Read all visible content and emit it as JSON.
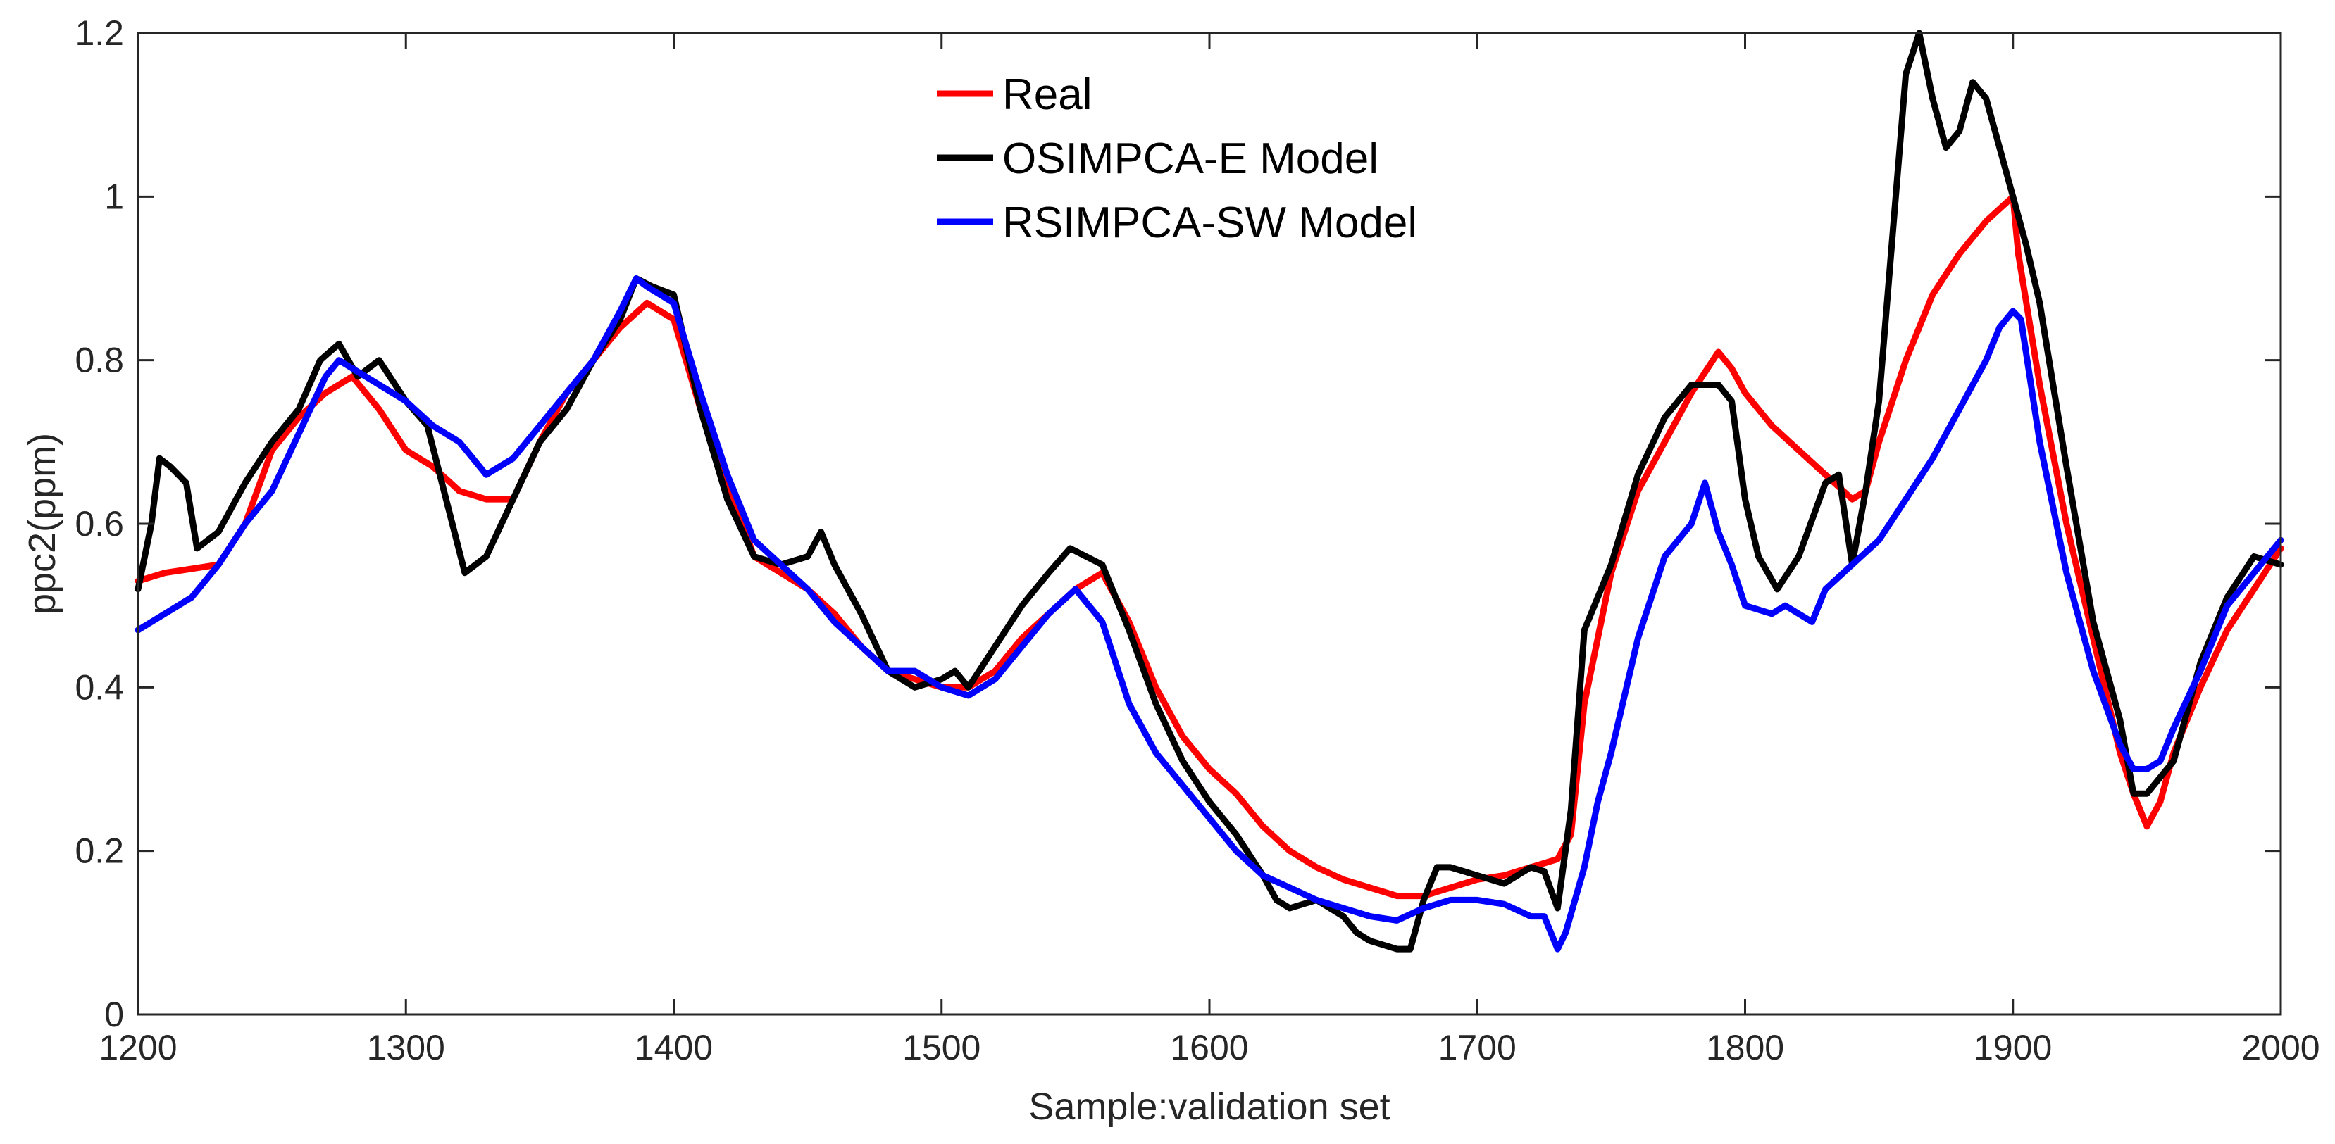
{
  "chart_data": {
    "type": "line",
    "title": "",
    "xlabel": "Sample:validation set",
    "ylabel": "ppc2(ppm)",
    "xlim": [
      1200,
      2000
    ],
    "ylim": [
      0,
      1.2
    ],
    "xticks": [
      1200,
      1300,
      1400,
      1500,
      1600,
      1700,
      1800,
      1900,
      2000
    ],
    "yticks": [
      0,
      0.2,
      0.4,
      0.6,
      0.8,
      1,
      1.2
    ],
    "xtick_labels": [
      "1200",
      "1300",
      "1400",
      "1500",
      "1600",
      "1700",
      "1800",
      "1900",
      "2000"
    ],
    "ytick_labels": [
      "0",
      "0.2",
      "0.4",
      "0.6",
      "0.8",
      "1",
      "1.2"
    ],
    "grid": false,
    "legend_position": "top-center",
    "series": [
      {
        "name": "Real",
        "color": "#ff0000",
        "x": [
          1200,
          1210,
          1220,
          1230,
          1240,
          1250,
          1260,
          1270,
          1280,
          1290,
          1300,
          1310,
          1320,
          1330,
          1340,
          1350,
          1360,
          1370,
          1380,
          1390,
          1400,
          1410,
          1420,
          1430,
          1440,
          1450,
          1460,
          1470,
          1480,
          1490,
          1500,
          1510,
          1520,
          1530,
          1540,
          1550,
          1560,
          1570,
          1580,
          1590,
          1600,
          1610,
          1620,
          1630,
          1640,
          1650,
          1660,
          1670,
          1680,
          1690,
          1700,
          1710,
          1720,
          1730,
          1735,
          1740,
          1750,
          1760,
          1770,
          1780,
          1790,
          1795,
          1800,
          1810,
          1820,
          1830,
          1840,
          1845,
          1850,
          1860,
          1870,
          1880,
          1890,
          1900,
          1902,
          1910,
          1920,
          1930,
          1940,
          1945,
          1950,
          1955,
          1960,
          1970,
          1980,
          1990,
          2000
        ],
        "y": [
          0.53,
          0.54,
          0.545,
          0.55,
          0.6,
          0.69,
          0.73,
          0.76,
          0.78,
          0.74,
          0.69,
          0.67,
          0.64,
          0.63,
          0.63,
          0.7,
          0.76,
          0.8,
          0.84,
          0.87,
          0.85,
          0.74,
          0.65,
          0.56,
          0.54,
          0.52,
          0.49,
          0.45,
          0.42,
          0.41,
          0.4,
          0.4,
          0.42,
          0.46,
          0.49,
          0.52,
          0.54,
          0.48,
          0.4,
          0.34,
          0.3,
          0.27,
          0.23,
          0.2,
          0.18,
          0.165,
          0.155,
          0.145,
          0.145,
          0.155,
          0.165,
          0.17,
          0.18,
          0.19,
          0.22,
          0.38,
          0.54,
          0.64,
          0.7,
          0.76,
          0.81,
          0.79,
          0.76,
          0.72,
          0.69,
          0.66,
          0.63,
          0.64,
          0.7,
          0.8,
          0.88,
          0.93,
          0.97,
          1.0,
          0.93,
          0.77,
          0.6,
          0.46,
          0.32,
          0.27,
          0.23,
          0.26,
          0.32,
          0.4,
          0.47,
          0.52,
          0.57
        ]
      },
      {
        "name": "OSIMPCA-E Model",
        "color": "#000000",
        "x": [
          1200,
          1205,
          1208,
          1212,
          1218,
          1222,
          1230,
          1240,
          1250,
          1260,
          1268,
          1275,
          1282,
          1290,
          1300,
          1308,
          1315,
          1322,
          1330,
          1340,
          1350,
          1360,
          1370,
          1380,
          1386,
          1392,
          1400,
          1410,
          1420,
          1430,
          1440,
          1450,
          1455,
          1460,
          1470,
          1480,
          1490,
          1500,
          1505,
          1510,
          1520,
          1530,
          1540,
          1548,
          1560,
          1570,
          1580,
          1590,
          1600,
          1610,
          1620,
          1625,
          1630,
          1640,
          1650,
          1655,
          1660,
          1670,
          1675,
          1680,
          1685,
          1690,
          1700,
          1710,
          1715,
          1720,
          1725,
          1730,
          1735,
          1740,
          1750,
          1760,
          1770,
          1780,
          1785,
          1790,
          1795,
          1800,
          1805,
          1812,
          1820,
          1830,
          1835,
          1840,
          1845,
          1850,
          1855,
          1860,
          1865,
          1870,
          1875,
          1880,
          1885,
          1890,
          1900,
          1905,
          1910,
          1920,
          1930,
          1940,
          1945,
          1950,
          1960,
          1970,
          1980,
          1990,
          2000
        ],
        "y": [
          0.52,
          0.6,
          0.68,
          0.67,
          0.65,
          0.57,
          0.59,
          0.65,
          0.7,
          0.74,
          0.8,
          0.82,
          0.78,
          0.8,
          0.75,
          0.72,
          0.63,
          0.54,
          0.56,
          0.63,
          0.7,
          0.74,
          0.8,
          0.85,
          0.9,
          0.89,
          0.88,
          0.74,
          0.63,
          0.56,
          0.55,
          0.56,
          0.59,
          0.55,
          0.49,
          0.42,
          0.4,
          0.41,
          0.42,
          0.4,
          0.45,
          0.5,
          0.54,
          0.57,
          0.55,
          0.47,
          0.38,
          0.31,
          0.26,
          0.22,
          0.17,
          0.14,
          0.13,
          0.14,
          0.12,
          0.1,
          0.09,
          0.08,
          0.08,
          0.14,
          0.18,
          0.18,
          0.17,
          0.16,
          0.17,
          0.18,
          0.175,
          0.13,
          0.25,
          0.47,
          0.55,
          0.66,
          0.73,
          0.77,
          0.77,
          0.77,
          0.75,
          0.63,
          0.56,
          0.52,
          0.56,
          0.65,
          0.66,
          0.55,
          0.64,
          0.75,
          0.95,
          1.15,
          1.2,
          1.12,
          1.06,
          1.08,
          1.14,
          1.12,
          1.0,
          0.94,
          0.87,
          0.67,
          0.48,
          0.36,
          0.27,
          0.27,
          0.31,
          0.43,
          0.51,
          0.56,
          0.55
        ]
      },
      {
        "name": "RSIMPCA-SW Model",
        "color": "#0000ff",
        "x": [
          1200,
          1210,
          1220,
          1230,
          1240,
          1250,
          1260,
          1270,
          1275,
          1280,
          1290,
          1300,
          1310,
          1320,
          1330,
          1340,
          1350,
          1360,
          1370,
          1380,
          1386,
          1390,
          1400,
          1410,
          1420,
          1430,
          1440,
          1450,
          1460,
          1470,
          1480,
          1490,
          1500,
          1510,
          1520,
          1530,
          1540,
          1550,
          1560,
          1570,
          1580,
          1590,
          1600,
          1610,
          1620,
          1630,
          1640,
          1650,
          1660,
          1670,
          1680,
          1690,
          1700,
          1710,
          1720,
          1725,
          1730,
          1733,
          1740,
          1745,
          1750,
          1760,
          1770,
          1780,
          1785,
          1790,
          1795,
          1800,
          1810,
          1815,
          1820,
          1825,
          1830,
          1840,
          1850,
          1860,
          1870,
          1880,
          1890,
          1895,
          1900,
          1903,
          1910,
          1920,
          1930,
          1940,
          1945,
          1950,
          1955,
          1960,
          1970,
          1980,
          1990,
          2000
        ],
        "y": [
          0.47,
          0.49,
          0.51,
          0.55,
          0.6,
          0.64,
          0.71,
          0.78,
          0.8,
          0.79,
          0.77,
          0.75,
          0.72,
          0.7,
          0.66,
          0.68,
          0.72,
          0.76,
          0.8,
          0.86,
          0.9,
          0.89,
          0.87,
          0.76,
          0.66,
          0.58,
          0.55,
          0.52,
          0.48,
          0.45,
          0.42,
          0.42,
          0.4,
          0.39,
          0.41,
          0.45,
          0.49,
          0.52,
          0.48,
          0.38,
          0.32,
          0.28,
          0.24,
          0.2,
          0.17,
          0.155,
          0.14,
          0.13,
          0.12,
          0.115,
          0.13,
          0.14,
          0.14,
          0.135,
          0.12,
          0.12,
          0.08,
          0.1,
          0.18,
          0.26,
          0.32,
          0.46,
          0.56,
          0.6,
          0.65,
          0.59,
          0.55,
          0.5,
          0.49,
          0.5,
          0.49,
          0.48,
          0.52,
          0.55,
          0.58,
          0.63,
          0.68,
          0.74,
          0.8,
          0.84,
          0.86,
          0.85,
          0.7,
          0.54,
          0.42,
          0.33,
          0.3,
          0.3,
          0.31,
          0.35,
          0.42,
          0.5,
          0.54,
          0.58
        ]
      }
    ]
  }
}
